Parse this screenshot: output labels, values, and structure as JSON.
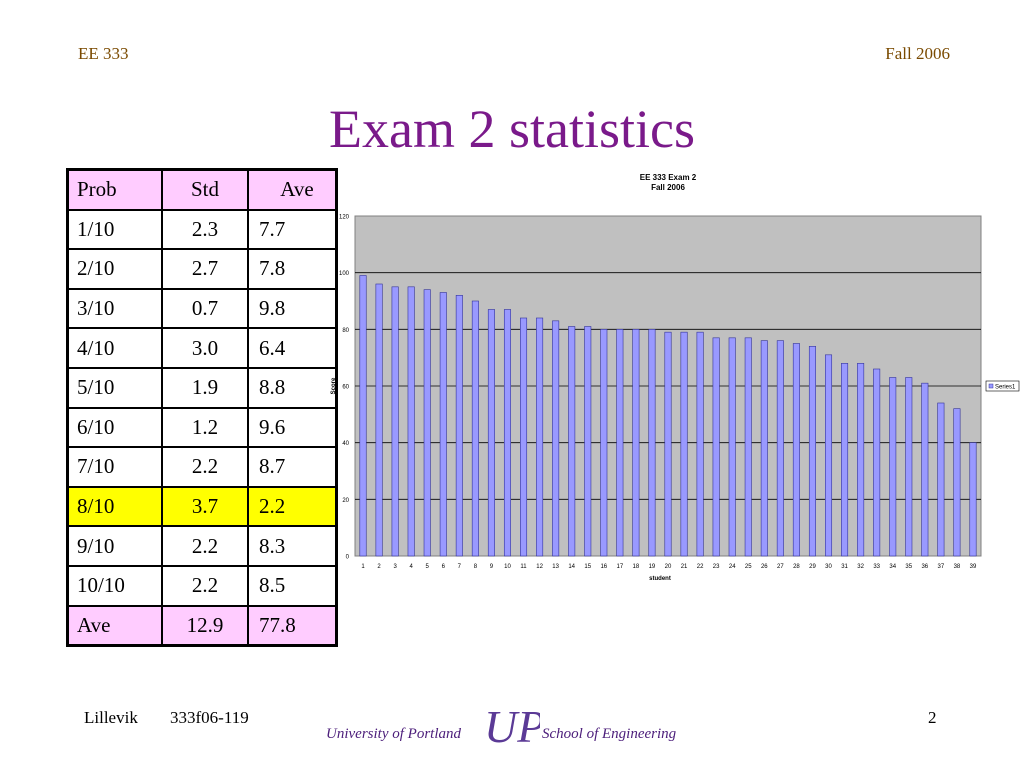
{
  "header": {
    "course": "EE 333",
    "term": "Fall 2006"
  },
  "title": "Exam 2 statistics",
  "table": {
    "headers": [
      "Prob",
      "Std",
      "Ave"
    ],
    "rows": [
      [
        "1/10",
        "2.3",
        "7.7"
      ],
      [
        "2/10",
        "2.7",
        "7.8"
      ],
      [
        "3/10",
        "0.7",
        "9.8"
      ],
      [
        "4/10",
        "3.0",
        "6.4"
      ],
      [
        "5/10",
        "1.9",
        "8.8"
      ],
      [
        "6/10",
        "1.2",
        "9.6"
      ],
      [
        "7/10",
        "2.2",
        "8.7"
      ],
      [
        "8/10",
        "3.7",
        "2.2"
      ],
      [
        "9/10",
        "2.2",
        "8.3"
      ],
      [
        "10/10",
        "2.2",
        "8.5"
      ],
      [
        "Ave",
        "12.9",
        "77.8"
      ]
    ],
    "highlight_color": "#ffff00",
    "header_color": "#ffccff"
  },
  "chart_data": {
    "type": "bar",
    "title": "EE 333 Exam 2",
    "subtitle": "Fall 2006",
    "xlabel": "student",
    "ylabel": "Score",
    "ylim": [
      0,
      120
    ],
    "yticks": [
      0,
      20,
      40,
      60,
      80,
      100,
      120
    ],
    "grid": true,
    "legend_position": "right",
    "categories": [
      "1",
      "2",
      "3",
      "4",
      "5",
      "6",
      "7",
      "8",
      "9",
      "10",
      "11",
      "12",
      "13",
      "14",
      "15",
      "16",
      "17",
      "18",
      "19",
      "20",
      "21",
      "22",
      "23",
      "24",
      "25",
      "26",
      "27",
      "28",
      "29",
      "30",
      "31",
      "32",
      "33",
      "34",
      "35",
      "36",
      "37",
      "38",
      "39"
    ],
    "series": [
      {
        "name": "Series1",
        "color": "#9999ff",
        "values": [
          99,
          96,
          95,
          95,
          94,
          93,
          92,
          90,
          87,
          87,
          84,
          84,
          83,
          81,
          81,
          80,
          80,
          80,
          80,
          79,
          79,
          79,
          77,
          77,
          77,
          76,
          76,
          75,
          74,
          71,
          68,
          68,
          66,
          63,
          63,
          61,
          54,
          52,
          40
        ]
      }
    ]
  },
  "footer": {
    "author": "Lillevik",
    "doc_id": "333f06-119",
    "page": "2",
    "university": "University of Portland",
    "school": "School of Engineering",
    "logo_text": "UP"
  }
}
